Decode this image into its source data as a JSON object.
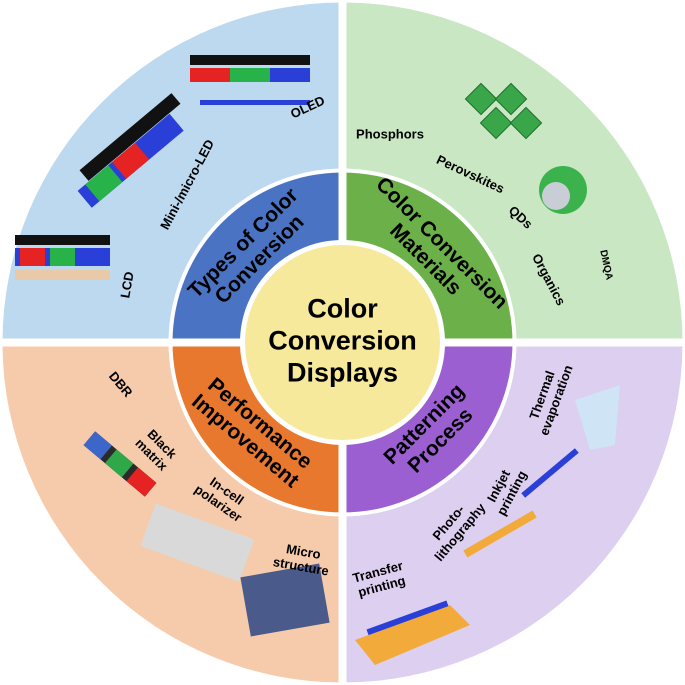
{
  "center": {
    "lines": [
      "Color",
      "Conversion",
      "Displays"
    ]
  },
  "sections": [
    {
      "title": [
        "Types of Color",
        "Conversion"
      ],
      "items": [
        {
          "lines": [
            "LCD"
          ]
        },
        {
          "lines": [
            "Mini-/micro-LED"
          ]
        },
        {
          "lines": [
            "OLED"
          ]
        }
      ]
    },
    {
      "title": [
        "Color Conversion",
        "Materials"
      ],
      "items": [
        {
          "lines": [
            "Phosphors"
          ]
        },
        {
          "lines": [
            "Perovskites"
          ]
        },
        {
          "lines": [
            "QDs"
          ]
        },
        {
          "lines": [
            "Organics"
          ]
        },
        {
          "lines": [
            "DMQA"
          ]
        }
      ]
    },
    {
      "title": [
        "Performance",
        "Improvement"
      ],
      "items": [
        {
          "lines": [
            "DBR"
          ]
        },
        {
          "lines": [
            "Black",
            "matrix"
          ]
        },
        {
          "lines": [
            "In-cell",
            "polarizer"
          ]
        },
        {
          "lines": [
            "Micro",
            "structure"
          ]
        }
      ]
    },
    {
      "title": [
        "Patterning",
        "Process"
      ],
      "items": [
        {
          "lines": [
            "Thermal",
            "evaporation"
          ]
        },
        {
          "lines": [
            "Inkjet",
            "printing"
          ]
        },
        {
          "lines": [
            "Photo-",
            "lithography"
          ]
        },
        {
          "lines": [
            "Transfer",
            "printing"
          ]
        }
      ]
    }
  ]
}
